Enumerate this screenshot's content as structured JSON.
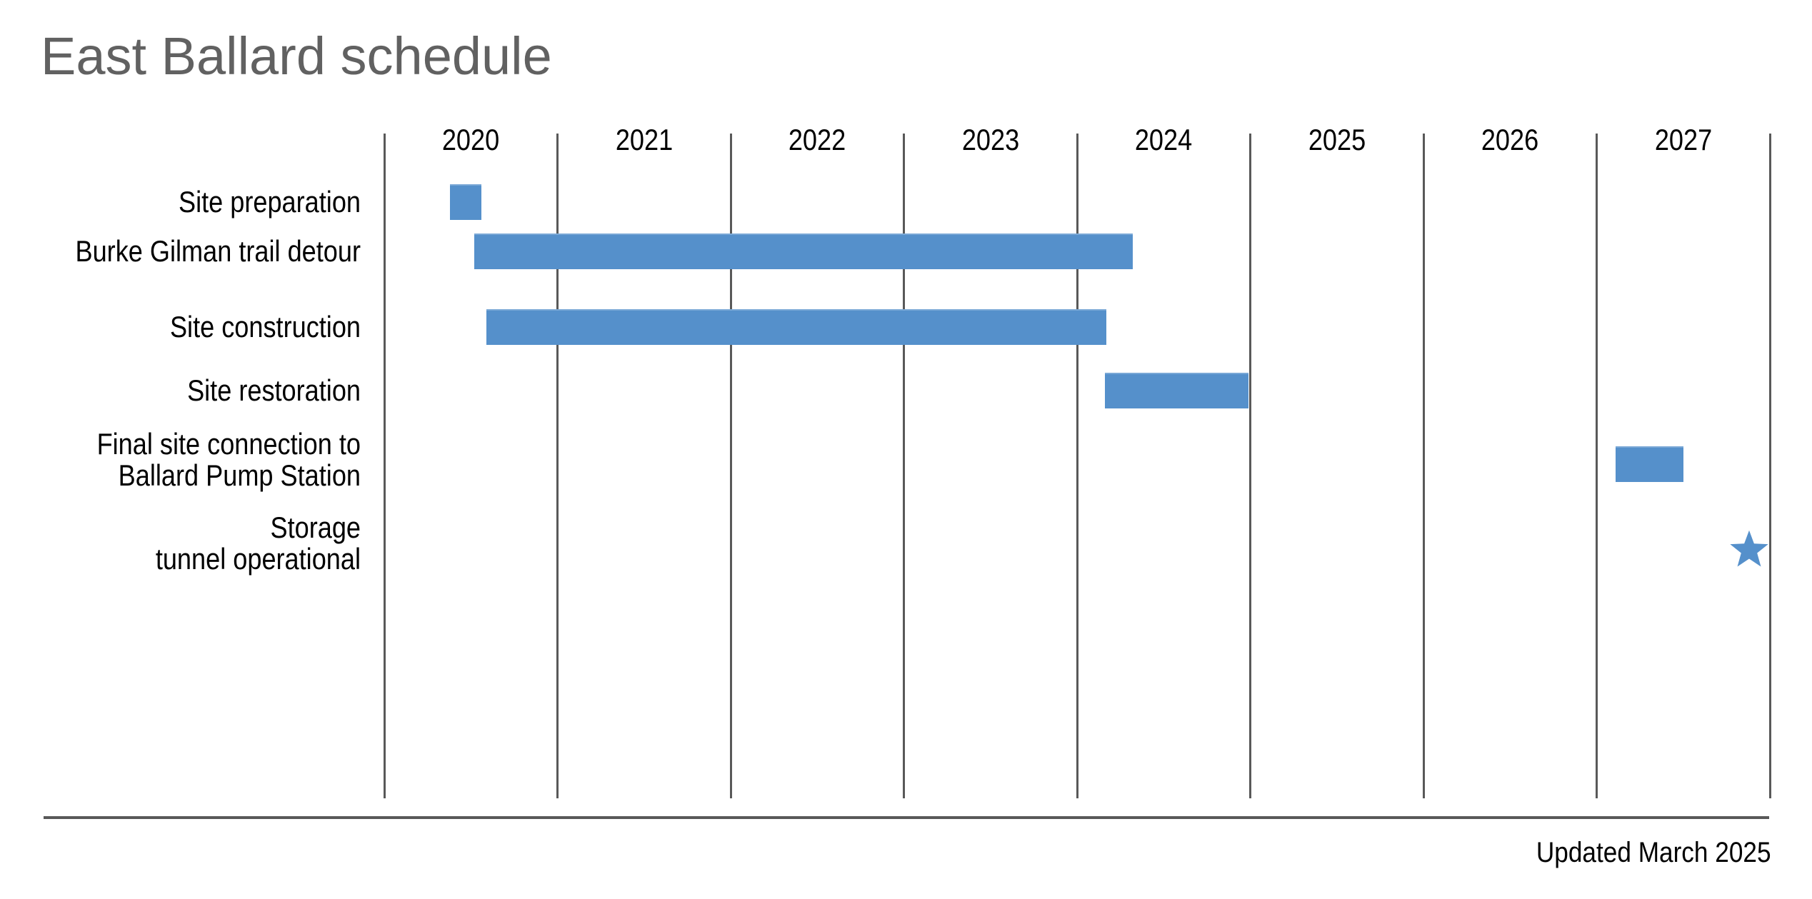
{
  "title": "East Ballard schedule",
  "footer": "Updated March 2025",
  "colors": {
    "bar": "#5590CB",
    "grid": "#595959",
    "title_text": "#616161",
    "label_text": "#000000",
    "background": "#FFFFFF"
  },
  "chart_data": {
    "type": "gantt",
    "title": "East Ballard schedule",
    "x_axis": {
      "tick_labels": [
        "2020",
        "2021",
        "2022",
        "2023",
        "2024",
        "2025",
        "2026",
        "2027"
      ],
      "range_years": [
        2020,
        2028
      ],
      "gridlines": true
    },
    "tasks": [
      {
        "label_lines": [
          "Site preparation"
        ],
        "marker": "bar",
        "start_year": 2020.38,
        "end_year": 2020.56
      },
      {
        "label_lines": [
          "Burke Gilman trail detour"
        ],
        "marker": "bar",
        "start_year": 2020.52,
        "end_year": 2024.32
      },
      {
        "label_lines": [
          "Site construction"
        ],
        "marker": "bar",
        "start_year": 2020.59,
        "end_year": 2024.17
      },
      {
        "label_lines": [
          "Site restoration"
        ],
        "marker": "bar",
        "start_year": 2024.16,
        "end_year": 2024.99
      },
      {
        "label_lines": [
          "Final site connection to",
          "Ballard Pump Station"
        ],
        "marker": "bar",
        "start_year": 2027.11,
        "end_year": 2027.5
      },
      {
        "label_lines": [
          "Storage",
          "tunnel operational"
        ],
        "marker": "star",
        "milestone_year": 2027.88
      }
    ],
    "footer_note": "Updated March 2025",
    "legend": "none"
  }
}
